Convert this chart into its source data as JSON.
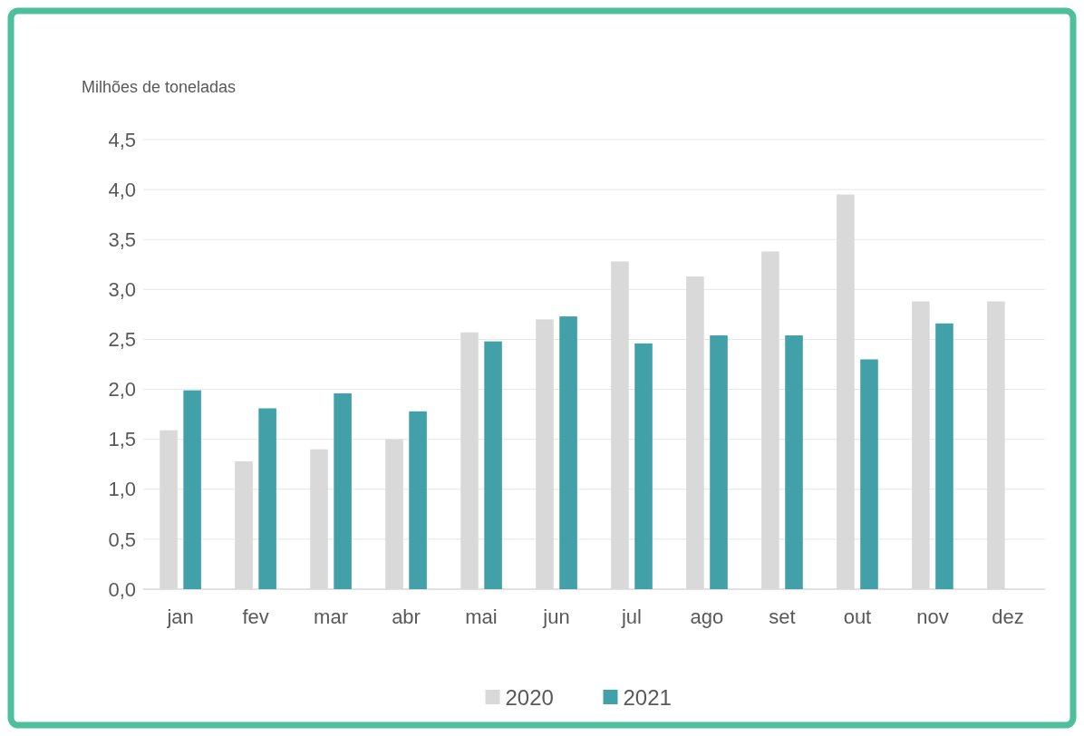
{
  "chart_data": {
    "type": "bar",
    "ylabel": "Milhões de toneladas",
    "categories": [
      "jan",
      "fev",
      "mar",
      "abr",
      "mai",
      "jun",
      "jul",
      "ago",
      "set",
      "out",
      "nov",
      "dez"
    ],
    "series": [
      {
        "name": "2020",
        "color": "#d9d9d9",
        "values": [
          1.59,
          1.28,
          1.4,
          1.5,
          2.57,
          2.7,
          3.28,
          3.13,
          3.38,
          3.95,
          2.88,
          2.88
        ]
      },
      {
        "name": "2021",
        "color": "#41a0a8",
        "values": [
          1.99,
          1.81,
          1.96,
          1.78,
          2.48,
          2.73,
          2.46,
          2.54,
          2.54,
          2.3,
          2.66,
          null
        ]
      }
    ],
    "ylim": [
      0,
      4.5
    ],
    "yticks": [
      {
        "value": 0,
        "label": "0,0"
      },
      {
        "value": 0.5,
        "label": "0,5"
      },
      {
        "value": 1,
        "label": "1,0"
      },
      {
        "value": 1.5,
        "label": "1,5"
      },
      {
        "value": 2,
        "label": "2,0"
      },
      {
        "value": 2.5,
        "label": "2,5"
      },
      {
        "value": 3,
        "label": "3,0"
      },
      {
        "value": 3.5,
        "label": "3,5"
      },
      {
        "value": 4,
        "label": "4,0"
      },
      {
        "value": 4.5,
        "label": "4,5"
      }
    ],
    "grid": "y",
    "legend": "bottom"
  }
}
